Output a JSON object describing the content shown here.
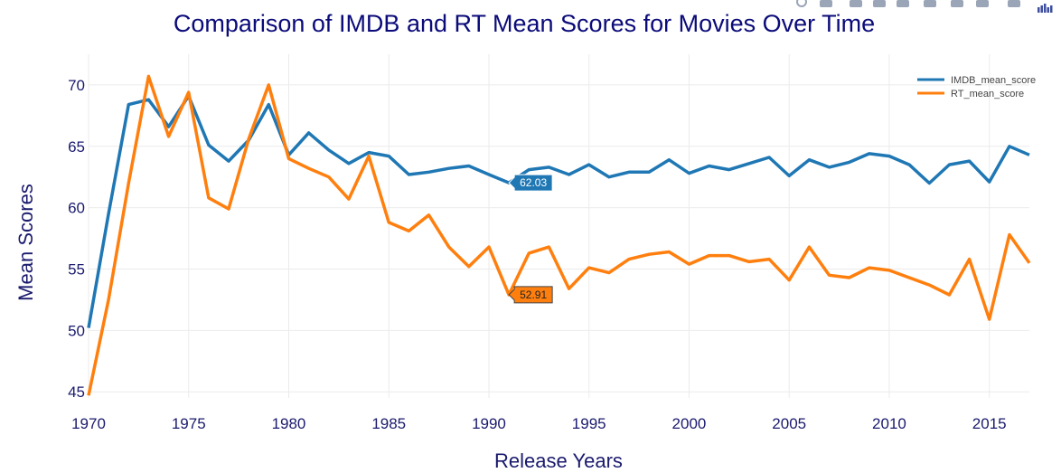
{
  "chart_data": {
    "type": "line",
    "title": "Comparison of IMDB and RT Mean Scores for Movies Over Time",
    "xlabel": "Release Years",
    "ylabel": "Mean Scores",
    "xlim": [
      1970,
      2017
    ],
    "ylim": [
      44.5,
      72.5
    ],
    "x_ticks": [
      1970,
      1975,
      1980,
      1985,
      1990,
      1995,
      2000,
      2005,
      2010,
      2015
    ],
    "y_ticks": [
      45,
      50,
      55,
      60,
      65,
      70
    ],
    "grid": true,
    "legend_position": "top-right",
    "x": [
      1970,
      1971,
      1972,
      1973,
      1974,
      1975,
      1976,
      1977,
      1978,
      1979,
      1980,
      1981,
      1982,
      1983,
      1984,
      1985,
      1986,
      1987,
      1988,
      1989,
      1990,
      1991,
      1992,
      1993,
      1994,
      1995,
      1996,
      1997,
      1998,
      1999,
      2000,
      2001,
      2002,
      2003,
      2004,
      2005,
      2006,
      2007,
      2008,
      2009,
      2010,
      2011,
      2012,
      2013,
      2014,
      2015,
      2016,
      2017
    ],
    "series": [
      {
        "name": "IMDB_mean_score",
        "color": "#1f77b4",
        "values": [
          50.2,
          59.5,
          68.4,
          68.8,
          66.6,
          69.1,
          65.1,
          63.8,
          65.5,
          68.4,
          64.3,
          66.1,
          64.7,
          63.6,
          64.5,
          64.2,
          62.7,
          62.9,
          63.2,
          63.4,
          62.7,
          62.03,
          63.1,
          63.3,
          62.7,
          63.5,
          62.5,
          62.9,
          62.9,
          63.9,
          62.8,
          63.4,
          63.1,
          63.6,
          64.1,
          62.6,
          63.9,
          63.3,
          63.7,
          64.4,
          64.2,
          63.5,
          62.0,
          63.5,
          63.8,
          62.1,
          65.0,
          64.3
        ]
      },
      {
        "name": "RT_mean_score",
        "color": "#ff7f0e",
        "values": [
          44.7,
          52.5,
          62.0,
          70.7,
          65.8,
          69.4,
          60.8,
          59.9,
          65.6,
          70.0,
          64.0,
          63.2,
          62.5,
          60.7,
          64.2,
          58.8,
          58.1,
          59.4,
          56.8,
          55.2,
          56.8,
          52.91,
          56.3,
          56.8,
          53.4,
          55.1,
          54.7,
          55.8,
          56.2,
          56.4,
          55.4,
          56.1,
          56.1,
          55.6,
          55.8,
          54.1,
          56.8,
          54.5,
          54.3,
          55.1,
          54.9,
          54.3,
          53.7,
          52.9,
          55.8,
          50.9,
          57.8,
          55.5
        ]
      }
    ],
    "hover_labels": [
      {
        "series": "IMDB_mean_score",
        "x": 1991,
        "y": 62.03,
        "text": "62.03"
      },
      {
        "series": "RT_mean_score",
        "x": 1991,
        "y": 52.91,
        "text": "52.91"
      }
    ]
  },
  "modebar": {
    "icons": [
      "zoom-icon",
      "pan-icon",
      "zoom-in-icon",
      "zoom-out-icon",
      "autoscale-icon",
      "reset-axes-icon",
      "spike-lines-icon",
      "compare-hover-icon",
      "closest-hover-icon",
      "plotly-logo-icon"
    ]
  }
}
